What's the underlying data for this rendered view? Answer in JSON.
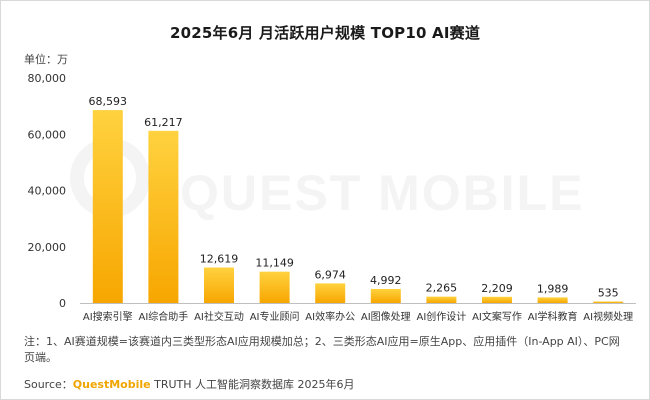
{
  "title": "2025年6月 月活跃用户规模 TOP10 AI赛道",
  "unit_label": "单位：万",
  "watermark": "QUEST MOBILE",
  "note": "注：1、AI赛道规模=该赛道内三类型形态AI应用规模加总；2、三类形态AI应用=原生App、应用插件（In-App AI）、PC网页端。",
  "source": {
    "prefix": "Source：",
    "brand": "QuestMobile",
    "rest": " TRUTH 人工智能洞察数据库 2025年6月"
  },
  "colors": {
    "bar_top": "#ffd23f",
    "bar_bottom": "#f7a600",
    "axis": "#bfbfbf"
  },
  "chart_data": {
    "type": "bar",
    "categories": [
      "AI搜索引擎",
      "AI综合助手",
      "AI社交互动",
      "AI专业顾问",
      "AI效率办公",
      "AI图像处理",
      "AI创作设计",
      "AI文案写作",
      "AI学科教育",
      "AI视频处理"
    ],
    "values": [
      68593,
      61217,
      12619,
      11149,
      6974,
      4992,
      2265,
      2209,
      1989,
      535
    ],
    "value_labels": [
      "68,593",
      "61,217",
      "12,619",
      "11,149",
      "6,974",
      "4,992",
      "2,265",
      "2,209",
      "1,989",
      "535"
    ],
    "ylim": [
      0,
      80000
    ],
    "yticks": [
      0,
      20000,
      40000,
      60000,
      80000
    ],
    "ytick_labels": [
      "0",
      "20,000",
      "40,000",
      "60,000",
      "80,000"
    ],
    "grid": false,
    "legend": "none"
  }
}
